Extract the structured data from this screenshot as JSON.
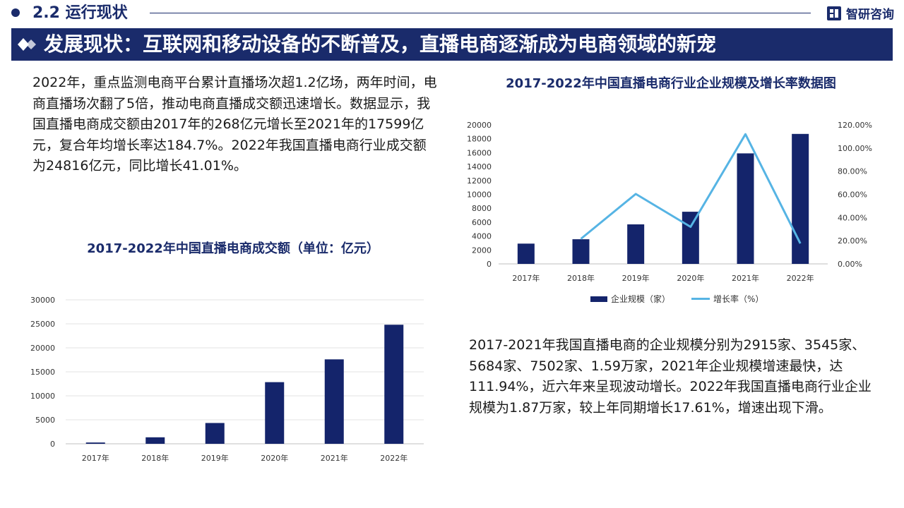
{
  "header": {
    "section_title": "2.2 运行现状",
    "brand": "智研咨询"
  },
  "banner": {
    "title": "发展现状：互联网和移动设备的不断普及，直播电商逐渐成为电商领域的新宠"
  },
  "paragraphs": {
    "p1": "2022年，重点监测电商平台累计直播场次超1.2亿场，两年时间，电商直播场次翻了5倍，推动电商直播成交额迅速增长。数据显示，我国直播电商成交额由2017年的268亿元增长至2021年的17599亿元，复合年均增长率达184.7%。2022年我国直播电商行业成交额为24816亿元，同比增长41.01%。",
    "p2": "2017-2021年我国直播电商的企业规模分别为2915家、3545家、5684家、7502家、1.59万家，2021年企业规模增速最快，达111.94%，近六年来呈现波动增长。2022年我国直播电商行业企业规模为1.87万家，较上年同期增长17.61%，增速出现下滑。"
  },
  "colors": {
    "navy": "#1a2b6b",
    "bar": "#14246b",
    "line": "#56b4e4"
  },
  "chart_data": [
    {
      "type": "bar",
      "title": "2017-2022年中国直播电商成交额（单位：亿元）",
      "categories": [
        "2017年",
        "2018年",
        "2019年",
        "2020年",
        "2021年",
        "2022年"
      ],
      "values": [
        268,
        1354,
        4338,
        12850,
        17599,
        24816
      ],
      "yticks": [
        "0",
        "5000",
        "10000",
        "15000",
        "20000",
        "25000",
        "30000"
      ],
      "ylim": [
        0,
        30000
      ],
      "grid": true,
      "legend": "none"
    },
    {
      "type": "bar+line",
      "title": "2017-2022年中国直播电商行业企业规模及增长率数据图",
      "categories": [
        "2017年",
        "2018年",
        "2019年",
        "2020年",
        "2021年",
        "2022年"
      ],
      "series": [
        {
          "name": "企业规模（家）",
          "type": "bar",
          "axis": "left",
          "values": [
            2915,
            3545,
            5684,
            7502,
            15900,
            18700
          ]
        },
        {
          "name": "增长率（%）",
          "type": "line",
          "axis": "right",
          "values": [
            null,
            21.61,
            60.34,
            31.98,
            111.94,
            17.61
          ]
        }
      ],
      "yticks_left": [
        "0",
        "2000",
        "4000",
        "6000",
        "8000",
        "10000",
        "12000",
        "14000",
        "16000",
        "18000",
        "20000"
      ],
      "yticks_right": [
        "0.00%",
        "20.00%",
        "40.00%",
        "60.00%",
        "80.00%",
        "100.00%",
        "120.00%"
      ],
      "ylim_left": [
        0,
        20000
      ],
      "ylim_right": [
        0,
        120
      ],
      "grid": false,
      "legend": "bottom"
    }
  ]
}
